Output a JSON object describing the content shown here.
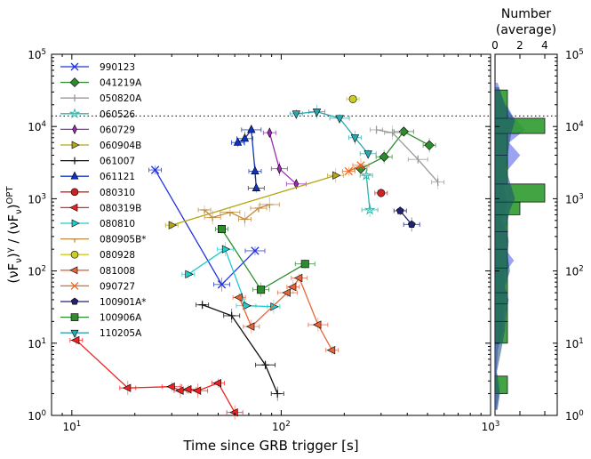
{
  "chart_data": {
    "type": "scatter",
    "xlabel": "Time since GRB trigger [s]",
    "ylabel_parts": [
      "(νF",
      "ν",
      ")",
      "γ",
      " / (νF",
      "ν",
      ")",
      "OPT"
    ],
    "xscale": "log",
    "yscale": "log",
    "xlim": [
      8,
      1000
    ],
    "ylim": [
      1,
      100000
    ],
    "x_ticks": [
      {
        "v": 10,
        "label": "10",
        "sup": "1"
      },
      {
        "v": 100,
        "label": "10",
        "sup": "2"
      },
      {
        "v": 1000,
        "label": "10",
        "sup": "3"
      }
    ],
    "y_ticks": [
      {
        "v": 1,
        "label": "10",
        "sup": "0"
      },
      {
        "v": 10,
        "label": "10",
        "sup": "1"
      },
      {
        "v": 100,
        "label": "10",
        "sup": "2"
      },
      {
        "v": 1000,
        "label": "10",
        "sup": "3"
      },
      {
        "v": 10000,
        "label": "10",
        "sup": "4"
      },
      {
        "v": 100000,
        "label": "10",
        "sup": "5"
      }
    ],
    "reference_line_y": 14000,
    "series": [
      {
        "name": "990123",
        "color": "#2233dd",
        "marker": "x",
        "points": [
          [
            25,
            2500
          ],
          [
            52,
            65
          ],
          [
            75,
            190
          ]
        ]
      },
      {
        "name": "041219A",
        "color": "#2e8b2e",
        "marker": "D",
        "points": [
          [
            240,
            2600
          ],
          [
            310,
            3800
          ],
          [
            385,
            8500
          ],
          [
            510,
            5500
          ]
        ]
      },
      {
        "name": "050820A",
        "color": "#999999",
        "marker": "|",
        "points": [
          [
            285,
            9000
          ],
          [
            340,
            8200
          ],
          [
            450,
            3500
          ],
          [
            560,
            1700
          ]
        ]
      },
      {
        "name": "060526",
        "color": "#2bb5a8",
        "marker": "*",
        "points": [
          [
            255,
            2100
          ],
          [
            265,
            700
          ]
        ]
      },
      {
        "name": "060729",
        "color": "#9b2bb5",
        "marker": "d",
        "points": [
          [
            88,
            8200
          ],
          [
            98,
            2600
          ],
          [
            118,
            1600
          ]
        ]
      },
      {
        "name": "060904B",
        "color": "#b5a613",
        "marker": ">",
        "points": [
          [
            30,
            430
          ],
          [
            182,
            2100
          ]
        ]
      },
      {
        "name": "061007",
        "color": "#111111",
        "marker": "+",
        "points": [
          [
            42,
            34
          ],
          [
            58,
            24
          ],
          [
            84,
            5
          ],
          [
            96,
            2
          ]
        ]
      },
      {
        "name": "061121",
        "color": "#1133bb",
        "marker": "^",
        "points": [
          [
            62,
            6000
          ],
          [
            67,
            6800
          ],
          [
            72,
            9000
          ],
          [
            75,
            2400
          ],
          [
            76,
            1400
          ]
        ]
      },
      {
        "name": "080310",
        "color": "#cc2222",
        "marker": "o",
        "points": [
          [
            300,
            1200
          ]
        ]
      },
      {
        "name": "080319B",
        "color": "#ee2222",
        "marker": "<",
        "points": [
          [
            10.5,
            11
          ],
          [
            18.5,
            2.4
          ],
          [
            30,
            2.5
          ],
          [
            33,
            2.2
          ],
          [
            36,
            2.3
          ],
          [
            40,
            2.2
          ],
          [
            50,
            2.8
          ],
          [
            60,
            1.1
          ]
        ]
      },
      {
        "name": "080810",
        "color": "#22cccc",
        "marker": ">",
        "points": [
          [
            36,
            90
          ],
          [
            54,
            200
          ],
          [
            68,
            33
          ],
          [
            92,
            32
          ]
        ]
      },
      {
        "name": "080905B*",
        "color": "#c08a40",
        "marker": "4",
        "points": [
          [
            43,
            700
          ],
          [
            47,
            550
          ],
          [
            57,
            650
          ],
          [
            67,
            520
          ],
          [
            78,
            740
          ],
          [
            88,
            830
          ]
        ]
      },
      {
        "name": "080928",
        "color": "#cccc22",
        "marker": "o",
        "points": [
          [
            220,
            24000
          ]
        ]
      },
      {
        "name": "081008",
        "color": "#e8653a",
        "marker": "<",
        "points": [
          [
            63,
            43
          ],
          [
            72,
            17
          ],
          [
            107,
            50
          ],
          [
            114,
            60
          ],
          [
            122,
            80
          ],
          [
            150,
            18
          ],
          [
            175,
            8
          ]
        ]
      },
      {
        "name": "090727",
        "color": "#ee6622",
        "marker": "x",
        "points": [
          [
            210,
            2400
          ],
          [
            240,
            2900
          ]
        ]
      },
      {
        "name": "100901A*",
        "color": "#222277",
        "marker": "p",
        "points": [
          [
            370,
            680
          ],
          [
            420,
            440
          ]
        ]
      },
      {
        "name": "100906A",
        "color": "#2e8b2e",
        "marker": "s",
        "points": [
          [
            52,
            380
          ],
          [
            80,
            55
          ],
          [
            130,
            125
          ]
        ]
      },
      {
        "name": "110205A",
        "color": "#2aa7b0",
        "marker": "v",
        "points": [
          [
            118,
            15000
          ],
          [
            148,
            16000
          ],
          [
            190,
            13000
          ],
          [
            225,
            7000
          ],
          [
            260,
            4200
          ]
        ]
      }
    ],
    "side_panel": {
      "title_lines": [
        "Number",
        "(average)"
      ],
      "type": "histogram",
      "x_ticks": [
        0,
        2,
        4
      ],
      "xlim": [
        0,
        5
      ],
      "bins": [
        {
          "lo": 1,
          "hi": 2,
          "count": 0
        },
        {
          "lo": 2,
          "hi": 3.5,
          "count": 1
        },
        {
          "lo": 3.5,
          "hi": 10,
          "count": 0
        },
        {
          "lo": 10,
          "hi": 20,
          "count": 1
        },
        {
          "lo": 20,
          "hi": 35,
          "count": 1
        },
        {
          "lo": 35,
          "hi": 50,
          "count": 1
        },
        {
          "lo": 50,
          "hi": 110,
          "count": 1
        },
        {
          "lo": 110,
          "hi": 200,
          "count": 1
        },
        {
          "lo": 200,
          "hi": 350,
          "count": 1
        },
        {
          "lo": 350,
          "hi": 600,
          "count": 1
        },
        {
          "lo": 600,
          "hi": 900,
          "count": 2
        },
        {
          "lo": 900,
          "hi": 1600,
          "count": 4
        },
        {
          "lo": 1600,
          "hi": 4000,
          "count": 1
        },
        {
          "lo": 4000,
          "hi": 8000,
          "count": 1
        },
        {
          "lo": 8000,
          "hi": 13000,
          "count": 4
        },
        {
          "lo": 13000,
          "hi": 32000,
          "count": 1
        }
      ],
      "density_green": [
        [
          1.2,
          0.2
        ],
        [
          2,
          0.4
        ],
        [
          2.5,
          0.3
        ],
        [
          4,
          0.15
        ],
        [
          8,
          0.5
        ],
        [
          15,
          0.8
        ],
        [
          25,
          0.9
        ],
        [
          40,
          1.1
        ],
        [
          60,
          0.8
        ],
        [
          100,
          1.2
        ],
        [
          170,
          1.0
        ],
        [
          260,
          1.1
        ],
        [
          400,
          0.9
        ],
        [
          700,
          1.2
        ],
        [
          1000,
          1.6
        ],
        [
          1500,
          1.3
        ],
        [
          2500,
          0.9
        ],
        [
          5000,
          1.1
        ],
        [
          8000,
          1.3
        ],
        [
          12000,
          1.6
        ],
        [
          20000,
          0.8
        ],
        [
          35000,
          0.3
        ]
      ],
      "density_blue": [
        [
          1.2,
          0.1
        ],
        [
          2,
          0.3
        ],
        [
          2.6,
          0.4
        ],
        [
          4,
          0.1
        ],
        [
          8,
          0.2
        ],
        [
          15,
          0.6
        ],
        [
          30,
          0.7
        ],
        [
          55,
          0.9
        ],
        [
          90,
          0.7
        ],
        [
          140,
          1.5
        ],
        [
          200,
          0.8
        ],
        [
          300,
          1.0
        ],
        [
          500,
          0.5
        ],
        [
          900,
          1.0
        ],
        [
          1400,
          0.7
        ],
        [
          2500,
          1.0
        ],
        [
          4000,
          2.0
        ],
        [
          6000,
          1.1
        ],
        [
          9000,
          2.4
        ],
        [
          14000,
          1.4
        ],
        [
          25000,
          0.6
        ],
        [
          40000,
          0.2
        ]
      ]
    },
    "legend_position": "upper-left"
  }
}
